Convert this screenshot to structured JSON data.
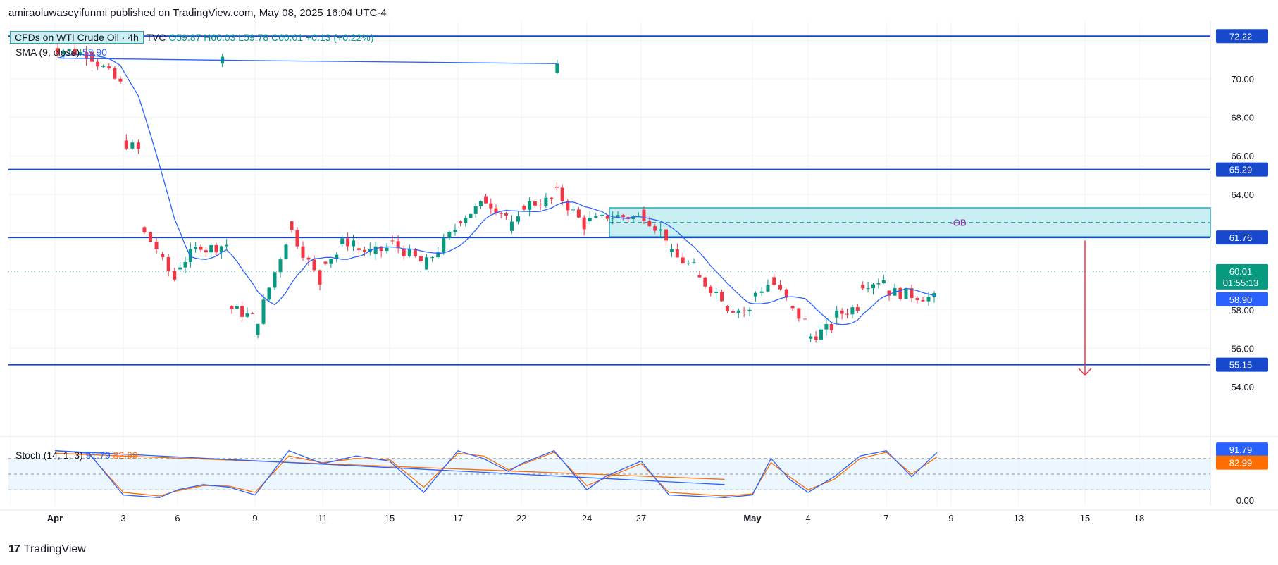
{
  "header": {
    "publisher": "amiraoluwaseyifunmi published on TradingView.com, May 08, 2025 16:04 UTC-4"
  },
  "legend": {
    "symbol": "CFDs on WTI Crude Oil · 4h",
    "source": "TVC",
    "open": "O59.87",
    "high": "H60.03",
    "low": "L59.78",
    "close": "C60.01",
    "change": "+0.13 (+0.22%)",
    "sma_label": "SMA (9, close)",
    "sma_value": "58.90",
    "stoch_label": "Stoch (14, 1, 3)",
    "stoch_k": "91.79",
    "stoch_d": "82.99"
  },
  "footer": {
    "brand": "TradingView"
  },
  "colors": {
    "up": "#089981",
    "down": "#f23645",
    "sma": "#2962ff",
    "level": "#1848cc",
    "zone_fill": "#c9eff3",
    "zone_border": "#2aa5b8",
    "stoch_k": "#2962ff",
    "stoch_d": "#ff6d00",
    "arrow": "#f23645",
    "ob_text": "#9c27b0"
  },
  "chart_data": {
    "type": "candlestick",
    "interval": "4h",
    "price_axis": {
      "ticks": [
        "70.00",
        "68.00",
        "66.00",
        "64.00",
        "58.00",
        "56.00",
        "54.00"
      ],
      "range": [
        53.6,
        73.0
      ]
    },
    "time_axis": {
      "ticks": [
        "Apr",
        "3",
        "6",
        "9",
        "11",
        "15",
        "17",
        "22",
        "24",
        "27",
        "May",
        "4",
        "7",
        "9",
        "13",
        "15",
        "18"
      ]
    },
    "levels": [
      {
        "value": 72.22,
        "label": "72.22"
      },
      {
        "value": 65.29,
        "label": "65.29"
      },
      {
        "value": 61.76,
        "label": "61.76"
      },
      {
        "value": 55.15,
        "label": "55.15"
      }
    ],
    "last_price": {
      "value": 60.01,
      "label": "60.01",
      "countdown": "01:55:13"
    },
    "sma_last": {
      "value": 58.9,
      "label": "58.90"
    },
    "order_block": {
      "label": "-OB",
      "top": 63.3,
      "bottom": 61.8,
      "mid": 62.55,
      "from_date": "Apr 25"
    },
    "projection_arrow": {
      "from": 61.6,
      "to": 54.6,
      "at_date": "May 15"
    },
    "close_path": [
      [
        "Mar 31",
        69.4,
        70.3
      ],
      [
        "Apr 1",
        71.3,
        71.6
      ],
      [
        "Apr 2",
        71.3,
        71.4
      ],
      [
        "Apr 3",
        69.7,
        66.8
      ],
      [
        "Apr 4",
        66.3,
        62.3
      ],
      [
        "Apr 5",
        61.2,
        60.9
      ],
      [
        "Apr 6",
        59.6,
        60.1
      ],
      [
        "Apr 7",
        61.4,
        61.1
      ],
      [
        "Apr 8",
        61.4,
        58.2
      ],
      [
        "Apr 9",
        57.6,
        56.7
      ],
      [
        "Apr 10",
        61.6,
        62.6
      ],
      [
        "Apr 11",
        59.4,
        60.5
      ],
      [
        "Apr 12",
        60.9,
        61.4
      ],
      [
        "Apr 13",
        61.6,
        61.2
      ],
      [
        "Apr 14",
        61.0,
        60.9
      ],
      [
        "Apr 15",
        61.2,
        61.6
      ],
      [
        "Apr 16",
        60.5,
        60.1
      ],
      [
        "Apr 17",
        62.2,
        62.6
      ],
      [
        "Apr 19",
        63.4,
        63.9
      ],
      [
        "Apr 21",
        62.9,
        62.1
      ],
      [
        "Apr 22",
        62.6,
        63.4
      ],
      [
        "Apr 23",
        63.7,
        64.4
      ],
      [
        "Apr 24",
        62.4,
        62.6
      ],
      [
        "Apr 25",
        62.7,
        62.9
      ],
      [
        "Apr 27",
        62.8,
        63.2
      ],
      [
        "Apr 28",
        61.8,
        61.0
      ],
      [
        "Apr 29",
        60.2,
        59.8
      ],
      [
        "Apr 30",
        58.7,
        58.2
      ],
      [
        "May 1",
        57.9,
        58.7
      ],
      [
        "May 2",
        59.3,
        59.7
      ],
      [
        "May 3",
        58.5,
        58.2
      ],
      [
        "May 4",
        57.4,
        56.5
      ],
      [
        "May 5",
        57.1,
        57.6
      ],
      [
        "May 6",
        58.2,
        59.3
      ],
      [
        "May 7",
        59.6,
        59.0
      ],
      [
        "May 8",
        58.6,
        60.0
      ]
    ],
    "stochastic": {
      "upper": 80,
      "lower": 20,
      "axis_ticks": [
        "0.00"
      ],
      "k_path": [
        [
          "Mar 31",
          30
        ],
        [
          "Apr 1",
          95
        ],
        [
          "Apr 2",
          90
        ],
        [
          "Apr 3",
          10
        ],
        [
          "Apr 5",
          5
        ],
        [
          "Apr 6",
          20
        ],
        [
          "Apr 7",
          30
        ],
        [
          "Apr 8",
          25
        ],
        [
          "Apr 9",
          10
        ],
        [
          "Apr 10",
          95
        ],
        [
          "Apr 11",
          70
        ],
        [
          "Apr 13",
          85
        ],
        [
          "Apr 15",
          75
        ],
        [
          "Apr 16",
          15
        ],
        [
          "Apr 17",
          95
        ],
        [
          "Apr 19",
          80
        ],
        [
          "Apr 21",
          55
        ],
        [
          "Apr 22",
          70
        ],
        [
          "Apr 23",
          95
        ],
        [
          "Apr 24",
          20
        ],
        [
          "Apr 25",
          45
        ],
        [
          "Apr 27",
          75
        ],
        [
          "Apr 28",
          10
        ],
        [
          "Apr 30",
          5
        ],
        [
          "May 1",
          10
        ],
        [
          "May 2",
          80
        ],
        [
          "May 3",
          40
        ],
        [
          "May 4",
          15
        ],
        [
          "May 5",
          45
        ],
        [
          "May 6",
          85
        ],
        [
          "May 7",
          95
        ],
        [
          "May 7b",
          45
        ],
        [
          "May 8",
          91.79
        ]
      ],
      "d_path": [
        [
          "Mar 31",
          40
        ],
        [
          "Apr 1",
          90
        ],
        [
          "Apr 2",
          88
        ],
        [
          "Apr 3",
          15
        ],
        [
          "Apr 5",
          8
        ],
        [
          "Apr 6",
          18
        ],
        [
          "Apr 7",
          28
        ],
        [
          "Apr 8",
          27
        ],
        [
          "Apr 9",
          15
        ],
        [
          "Apr 10",
          85
        ],
        [
          "Apr 11",
          72
        ],
        [
          "Apr 13",
          80
        ],
        [
          "Apr 15",
          78
        ],
        [
          "Apr 16",
          25
        ],
        [
          "Apr 17",
          90
        ],
        [
          "Apr 19",
          85
        ],
        [
          "Apr 21",
          58
        ],
        [
          "Apr 22",
          68
        ],
        [
          "Apr 23",
          92
        ],
        [
          "Apr 24",
          28
        ],
        [
          "Apr 25",
          42
        ],
        [
          "Apr 27",
          70
        ],
        [
          "Apr 28",
          15
        ],
        [
          "Apr 30",
          8
        ],
        [
          "May 1",
          12
        ],
        [
          "May 2",
          72
        ],
        [
          "May 3",
          45
        ],
        [
          "May 4",
          20
        ],
        [
          "May 5",
          40
        ],
        [
          "May 6",
          80
        ],
        [
          "May 7",
          92
        ],
        [
          "May 7b",
          50
        ],
        [
          "May 8",
          82.99
        ]
      ]
    }
  }
}
